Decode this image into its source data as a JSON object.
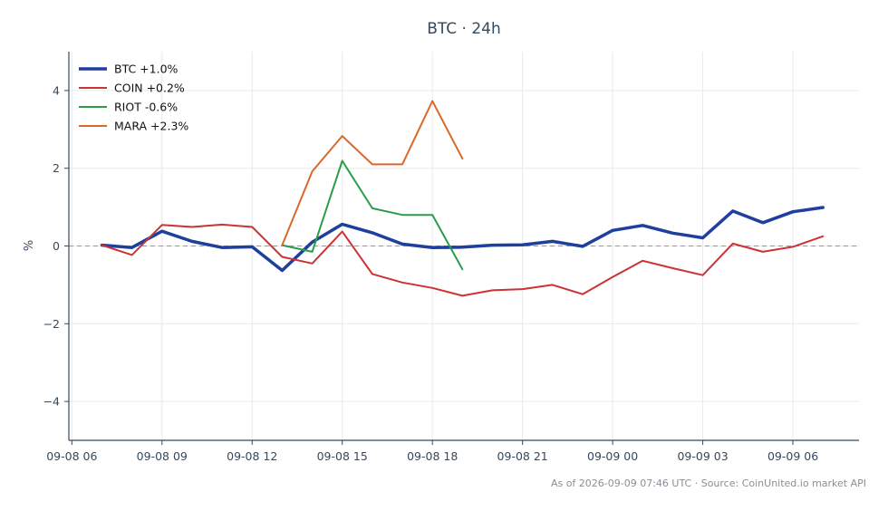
{
  "chart_data": {
    "type": "line",
    "title": "BTC · 24h",
    "ylabel": "%",
    "xlabel": "",
    "ylim": [
      -5,
      5
    ],
    "yticks": [
      4,
      2,
      0,
      -2,
      -4
    ],
    "ytick_labels": [
      "4",
      "2",
      "0",
      "−2",
      "−4"
    ],
    "xlim_hours": [
      -0.1,
      26.2
    ],
    "xticks": [
      0,
      3,
      6,
      9,
      12,
      15,
      18,
      21,
      24
    ],
    "xtick_labels": [
      "09-08 06",
      "09-08 09",
      "09-08 12",
      "09-08 15",
      "09-08 18",
      "09-08 21",
      "09-09 00",
      "09-09 03",
      "09-09 06"
    ],
    "grid": true,
    "zero_reference_line": true,
    "legend_position": "top-left",
    "series": [
      {
        "name": "BTC +1.0%",
        "color": "#1f3f9e",
        "width": 3.5,
        "x": [
          1,
          2,
          3,
          4,
          5,
          6,
          7,
          8,
          9,
          10,
          11,
          12,
          13,
          14,
          15,
          16,
          17,
          18,
          19,
          20,
          21,
          22,
          23,
          24,
          25
        ],
        "y": [
          0.02,
          -0.04,
          0.38,
          0.12,
          -0.04,
          -0.02,
          -0.63,
          0.1,
          0.56,
          0.34,
          0.05,
          -0.04,
          -0.03,
          0.02,
          0.03,
          0.12,
          -0.01,
          0.4,
          0.53,
          0.33,
          0.21,
          0.9,
          0.6,
          0.88,
          0.99
        ]
      },
      {
        "name": "COIN +0.2%",
        "color": "#cc3333",
        "width": 2,
        "x": [
          1,
          2,
          3,
          4,
          5,
          6,
          7,
          8,
          9,
          10,
          11,
          12,
          13,
          14,
          15,
          16,
          17,
          18,
          19,
          20,
          21,
          22,
          23,
          24,
          25
        ],
        "y": [
          0.02,
          -0.23,
          0.54,
          0.49,
          0.55,
          0.49,
          -0.28,
          -0.45,
          0.37,
          -0.72,
          -0.94,
          -1.08,
          -1.28,
          -1.14,
          -1.11,
          -1.0,
          -1.24,
          -0.8,
          -0.38,
          -0.57,
          -0.75,
          0.06,
          -0.15,
          -0.02,
          0.25
        ]
      },
      {
        "name": "RIOT -0.6%",
        "color": "#2a9d4b",
        "width": 2,
        "x": [
          7,
          8,
          9,
          10,
          11,
          12,
          13
        ],
        "y": [
          0.02,
          -0.15,
          2.19,
          0.97,
          0.8,
          0.8,
          -0.6
        ]
      },
      {
        "name": "MARA +2.3%",
        "color": "#d9692a",
        "width": 2,
        "x": [
          7,
          8,
          9,
          10,
          11,
          12,
          13
        ],
        "y": [
          0.02,
          1.92,
          2.83,
          2.1,
          2.1,
          3.73,
          2.25
        ]
      }
    ],
    "footer": "As of 2026-09-09 07:46 UTC · Source: CoinUnited.io market API"
  }
}
